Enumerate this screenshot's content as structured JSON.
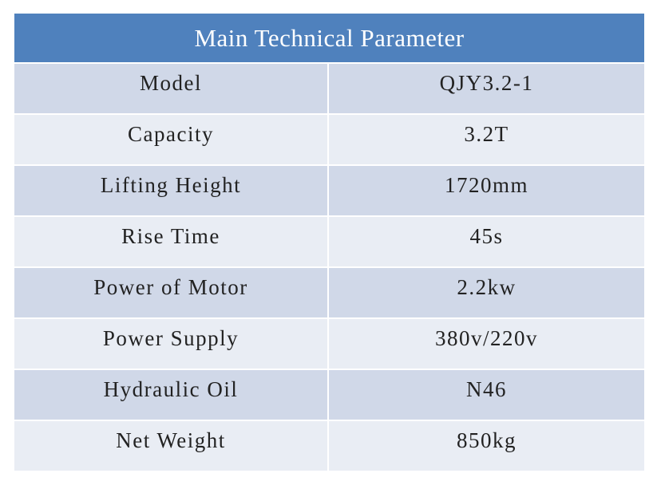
{
  "table": {
    "title": "Main Technical Parameter",
    "rows": [
      [
        "Model",
        "QJY3.2-1"
      ],
      [
        "Capacity",
        "3.2T"
      ],
      [
        "Lifting Height",
        "1720mm"
      ],
      [
        "Rise Time",
        "45s"
      ],
      [
        "Power of Motor",
        "2.2kw"
      ],
      [
        "Power Supply",
        "380v/220v"
      ],
      [
        "Hydraulic Oil",
        "N46"
      ],
      [
        "Net Weight",
        "850kg"
      ]
    ]
  }
}
